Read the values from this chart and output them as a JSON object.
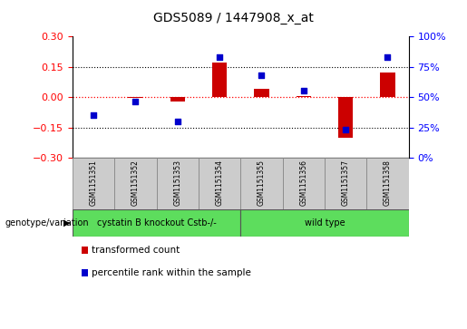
{
  "title": "GDS5089 / 1447908_x_at",
  "samples": [
    "GSM1151351",
    "GSM1151352",
    "GSM1151353",
    "GSM1151354",
    "GSM1151355",
    "GSM1151356",
    "GSM1151357",
    "GSM1151358"
  ],
  "transformed_count": [
    0.0,
    -0.005,
    -0.02,
    0.17,
    0.04,
    0.005,
    -0.2,
    0.12
  ],
  "percentile_rank": [
    35,
    46,
    30,
    83,
    68,
    55,
    23,
    83
  ],
  "bar_color": "#cc0000",
  "dot_color": "#0000cc",
  "ylim_left": [
    -0.3,
    0.3
  ],
  "ylim_right": [
    0,
    100
  ],
  "yticks_left": [
    -0.3,
    -0.15,
    0.0,
    0.15,
    0.3
  ],
  "yticks_right": [
    0,
    25,
    50,
    75,
    100
  ],
  "hline_y": [
    0.15,
    -0.15
  ],
  "red_hline_y": 0.0,
  "group1_label": "cystatin B knockout Cstb-/-",
  "group1_samples": [
    0,
    1,
    2,
    3
  ],
  "group2_label": "wild type",
  "group2_samples": [
    4,
    5,
    6,
    7
  ],
  "group_color": "#5ddd5d",
  "row_label": "genotype/variation",
  "legend1": "transformed count",
  "legend2": "percentile rank within the sample",
  "bg_color": "#ffffff",
  "plot_bg": "#ffffff",
  "sample_box_color": "#cccccc",
  "bar_width": 0.35
}
